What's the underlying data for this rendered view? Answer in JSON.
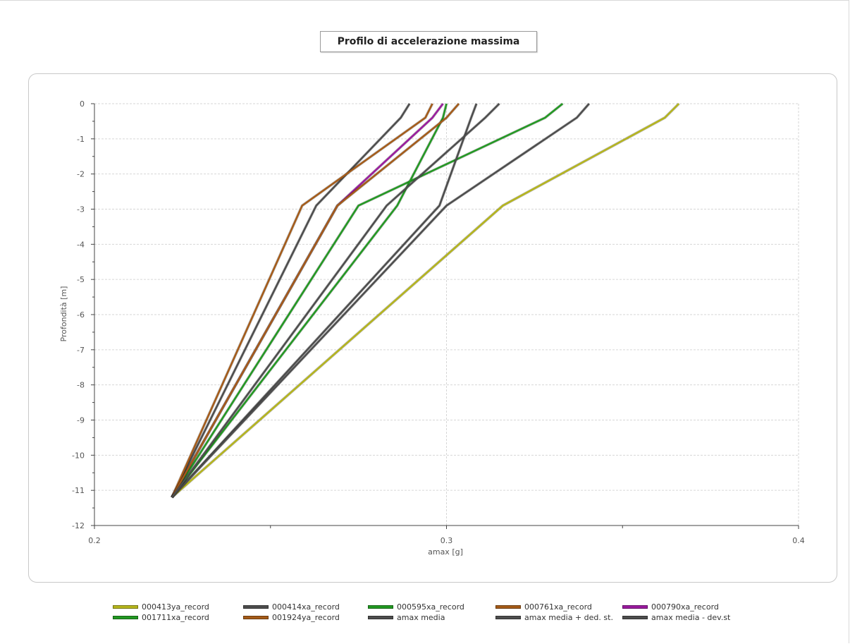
{
  "chart_data": {
    "type": "line",
    "title": "Profilo di accelerazione massima",
    "xlabel": "amax [g]",
    "ylabel": "Profondità [m]",
    "xlim": [
      0.2,
      0.4
    ],
    "ylim": [
      -12,
      0
    ],
    "x_ticks": [
      "0.2",
      "0.3",
      "0.4"
    ],
    "x_tick_values": [
      0.2,
      0.3,
      0.4
    ],
    "y_ticks": [
      "0",
      "-1",
      "-2",
      "-3",
      "-4",
      "-5",
      "-6",
      "-7",
      "-8",
      "-9",
      "-10",
      "-11",
      "-12"
    ],
    "y_tick_values": [
      0,
      -1,
      -2,
      -3,
      -4,
      -5,
      -6,
      -7,
      -8,
      -9,
      -10,
      -11,
      -12
    ],
    "grid": true,
    "legend_position": "bottom",
    "series": [
      {
        "name": "000413ya_record",
        "color": "#b5b51c",
        "x": [
          0.366,
          0.362,
          0.316,
          0.222
        ],
        "y": [
          0,
          -0.4,
          -2.9,
          -11.2
        ]
      },
      {
        "name": "000414xa_record",
        "color": "#4d4d4d",
        "x": [
          0.2895,
          0.287,
          0.263,
          0.222
        ],
        "y": [
          0,
          -0.4,
          -2.9,
          -11.2
        ]
      },
      {
        "name": "000595xa_record",
        "color": "#229922",
        "x": [
          0.333,
          0.328,
          0.275,
          0.222
        ],
        "y": [
          0,
          -0.4,
          -2.9,
          -11.2
        ]
      },
      {
        "name": "000761xa_record",
        "color": "#a55b18",
        "x": [
          0.296,
          0.294,
          0.259,
          0.222
        ],
        "y": [
          0,
          -0.4,
          -2.9,
          -11.2
        ]
      },
      {
        "name": "000790xa_record",
        "color": "#9a1a9e",
        "x": [
          0.299,
          0.296,
          0.269,
          0.222
        ],
        "y": [
          0,
          -0.4,
          -2.9,
          -11.2
        ]
      },
      {
        "name": "001711xa_record",
        "color": "#229922",
        "x": [
          0.3,
          0.299,
          0.286,
          0.222
        ],
        "y": [
          0,
          -0.4,
          -2.9,
          -11.2
        ]
      },
      {
        "name": "001924ya_record",
        "color": "#a55b18",
        "x": [
          0.3035,
          0.3,
          0.269,
          0.222
        ],
        "y": [
          0,
          -0.4,
          -2.9,
          -11.2
        ]
      },
      {
        "name": "amax media",
        "color": "#4d4d4d",
        "x": [
          0.3085,
          0.307,
          0.298,
          0.222
        ],
        "y": [
          0,
          -0.4,
          -2.9,
          -11.2
        ]
      },
      {
        "name": "amax media + ded. st.",
        "color": "#4d4d4d",
        "x": [
          0.3405,
          0.337,
          0.3,
          0.222
        ],
        "y": [
          0,
          -0.4,
          -2.9,
          -11.2
        ]
      },
      {
        "name": "amax media - dev.st",
        "color": "#4d4d4d",
        "x": [
          0.315,
          0.311,
          0.283,
          0.222
        ],
        "y": [
          0,
          -0.4,
          -2.9,
          -11.2
        ]
      }
    ]
  }
}
